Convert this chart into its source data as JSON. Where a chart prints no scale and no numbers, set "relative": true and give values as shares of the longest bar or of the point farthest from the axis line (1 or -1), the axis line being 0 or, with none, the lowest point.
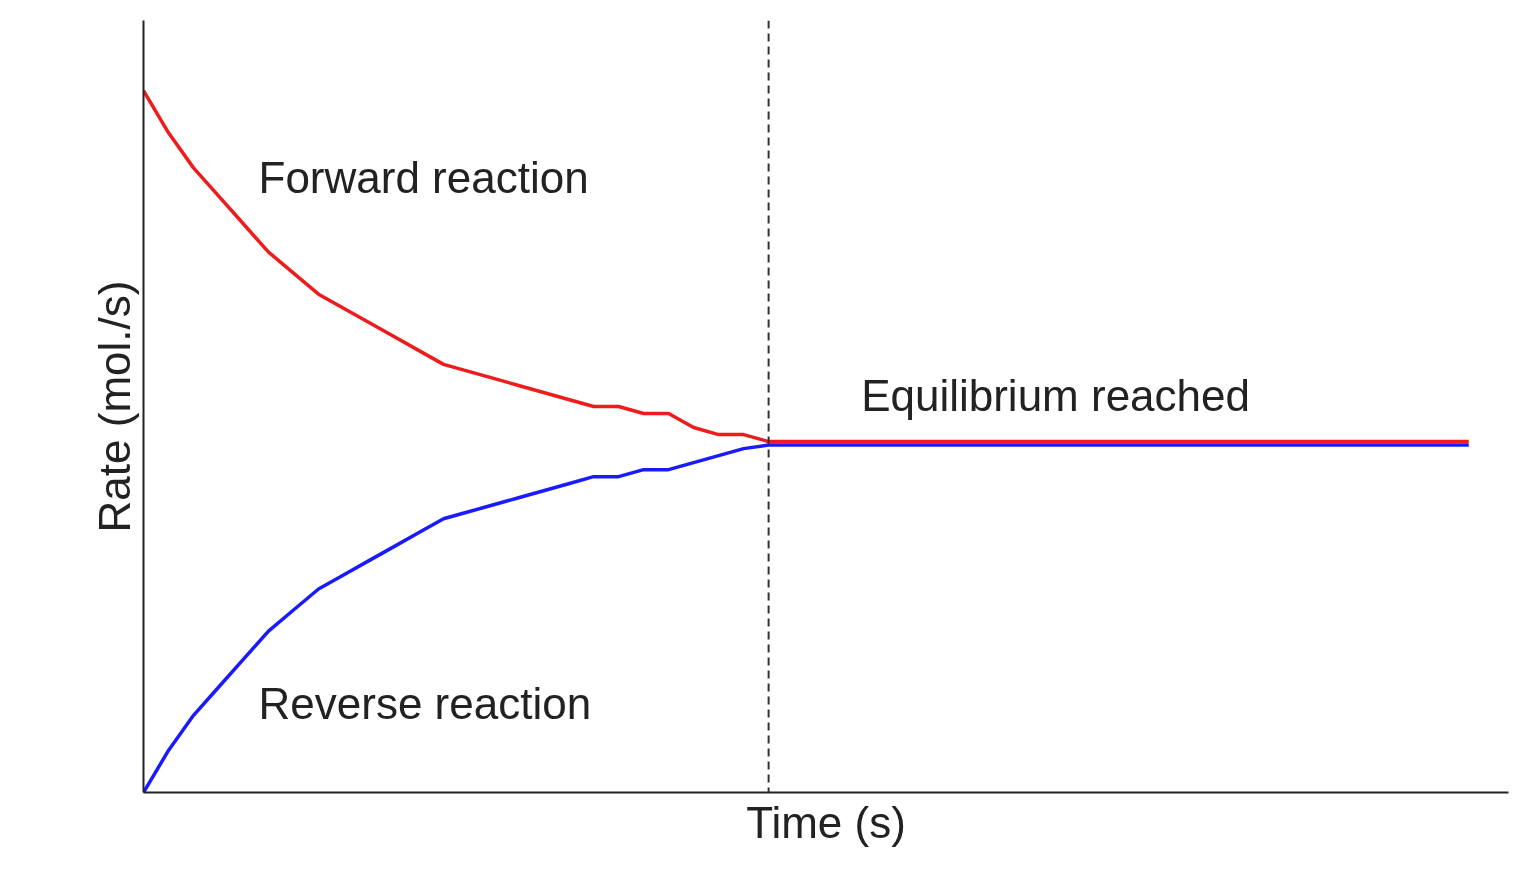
{
  "chart_data": {
    "type": "line",
    "relative": true,
    "xlabel": "Time (s)",
    "ylabel": "Rate (mol./s)",
    "categories": [
      null,
      null,
      null,
      null,
      null,
      null,
      null,
      null,
      null,
      null,
      null,
      null,
      null,
      null,
      null,
      null,
      null,
      null,
      null,
      null,
      null,
      null,
      null,
      null,
      null,
      null,
      null,
      null,
      null,
      null,
      null,
      null,
      null,
      null,
      null,
      null,
      null,
      null,
      null,
      null,
      null,
      null,
      null,
      null,
      null,
      null,
      null,
      null,
      null,
      null,
      null,
      null,
      null,
      null
    ],
    "series": [
      {
        "name": "Reverse reaction",
        "color": "#1a1aff",
        "values": [
          0,
          0.06,
          0.11,
          0.15,
          0.19,
          0.23,
          0.26,
          0.29,
          0.31,
          0.33,
          0.35,
          0.37,
          0.39,
          0.4,
          0.41,
          0.42,
          0.43,
          0.44,
          0.45,
          0.45,
          0.46,
          0.46,
          0.47,
          0.48,
          0.49,
          0.495,
          0.495,
          0.495,
          0.495,
          0.495,
          0.495,
          0.495,
          0.495,
          0.495,
          0.495,
          0.495,
          0.495,
          0.495,
          0.495,
          0.495,
          0.495,
          0.495,
          0.495,
          0.495,
          0.495,
          0.495,
          0.495,
          0.495,
          0.495,
          0.495,
          0.495,
          0.495,
          0.495,
          0.495
        ]
      },
      {
        "name": "Forward reaction",
        "color": "#ee1c1c",
        "values": [
          1,
          0.94,
          0.89,
          0.85,
          0.81,
          0.77,
          0.74,
          0.71,
          0.69,
          0.67,
          0.65,
          0.63,
          0.61,
          0.6,
          0.59,
          0.58,
          0.57,
          0.56,
          0.55,
          0.55,
          0.54,
          0.54,
          0.52,
          0.51,
          0.51,
          0.5,
          0.5,
          0.5,
          0.5,
          0.5,
          0.5,
          0.5,
          0.5,
          0.5,
          0.5,
          0.5,
          0.5,
          0.5,
          0.5,
          0.5,
          0.5,
          0.5,
          0.5,
          0.5,
          0.5,
          0.5,
          0.5,
          0.5,
          0.5,
          0.5,
          0.5,
          0.5,
          0.5,
          0.5
        ]
      }
    ],
    "annotations": [
      "Equilibrium reached"
    ],
    "legend": false,
    "marker": "none",
    "line_style": "solid"
  }
}
